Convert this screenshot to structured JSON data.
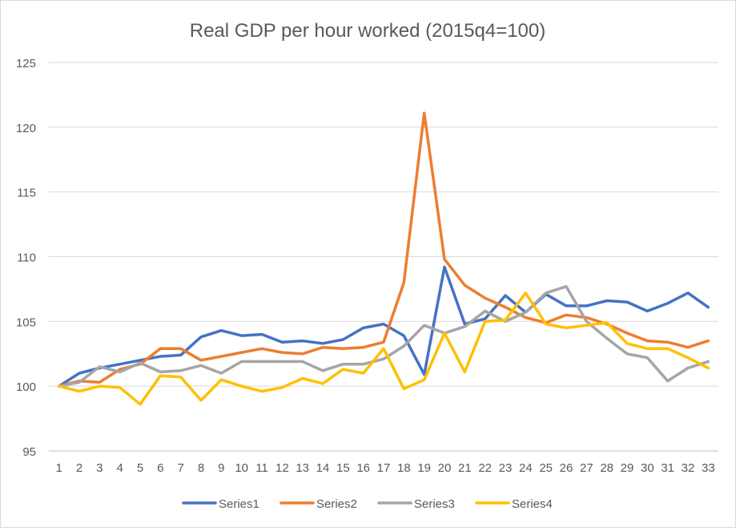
{
  "chart_data": {
    "type": "line",
    "title": "Real GDP per hour worked (2015q4=100)",
    "xlabel": "",
    "ylabel": "",
    "x": [
      1,
      2,
      3,
      4,
      5,
      6,
      7,
      8,
      9,
      10,
      11,
      12,
      13,
      14,
      15,
      16,
      17,
      18,
      19,
      20,
      21,
      22,
      23,
      24,
      25,
      26,
      27,
      28,
      29,
      30,
      31,
      32,
      33
    ],
    "ylim": [
      95,
      125
    ],
    "yticks": [
      95,
      100,
      105,
      110,
      115,
      120,
      125
    ],
    "grid": true,
    "legend": "bottom",
    "series": [
      {
        "name": "Series1",
        "color": "#4472C4",
        "values": [
          100,
          101.0,
          101.4,
          101.7,
          102.0,
          102.3,
          102.4,
          103.8,
          104.3,
          103.9,
          104.0,
          103.4,
          103.5,
          103.3,
          103.6,
          104.5,
          104.8,
          103.9,
          100.9,
          109.2,
          104.8,
          105.2,
          107.0,
          105.7,
          107.1,
          106.2,
          106.2,
          106.6,
          106.5,
          105.8,
          106.4,
          107.2,
          106.1
        ]
      },
      {
        "name": "Series2",
        "color": "#ED7D31",
        "values": [
          100,
          100.4,
          100.3,
          101.3,
          101.7,
          102.9,
          102.9,
          102.0,
          102.3,
          102.6,
          102.9,
          102.6,
          102.5,
          103.0,
          102.9,
          103.0,
          103.4,
          108.0,
          121.1,
          109.8,
          107.8,
          106.8,
          106.1,
          105.3,
          104.9,
          105.5,
          105.3,
          104.8,
          104.1,
          103.5,
          103.4,
          103.0,
          103.5
        ]
      },
      {
        "name": "Series3",
        "color": "#A5A5A5",
        "values": [
          100,
          100.3,
          101.5,
          101.1,
          101.8,
          101.1,
          101.2,
          101.6,
          101.0,
          101.9,
          101.9,
          101.9,
          101.9,
          101.2,
          101.7,
          101.7,
          102.1,
          103.1,
          104.7,
          104.1,
          104.6,
          105.8,
          105.0,
          105.7,
          107.2,
          107.7,
          105.0,
          103.7,
          102.5,
          102.2,
          100.4,
          101.4,
          101.9
        ]
      },
      {
        "name": "Series4",
        "color": "#FFC000",
        "values": [
          100,
          99.6,
          100.0,
          99.9,
          98.6,
          100.8,
          100.7,
          98.9,
          100.5,
          100.0,
          99.6,
          99.9,
          100.6,
          100.2,
          101.3,
          101.0,
          102.9,
          99.8,
          100.5,
          104.1,
          101.1,
          105.0,
          105.1,
          107.2,
          104.8,
          104.5,
          104.7,
          104.9,
          103.3,
          102.9,
          102.9,
          102.2,
          101.4
        ]
      }
    ]
  }
}
